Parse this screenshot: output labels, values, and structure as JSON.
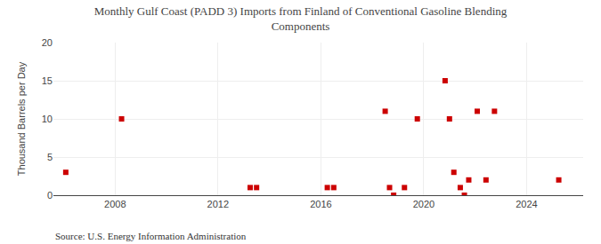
{
  "chart_data": {
    "type": "scatter",
    "title": "Monthly Gulf Coast (PADD 3) Imports from Finland of Conventional Gasoline Blending\nComponents",
    "ylabel": "Thousand Barrels per Day",
    "annotations": [
      "Source: U.S. Energy Information Administration"
    ],
    "x": [
      2006.08,
      2008.25,
      2013.25,
      2013.5,
      2016.25,
      2016.5,
      2018.5,
      2018.67,
      2018.83,
      2019.25,
      2019.75,
      2020.83,
      2021.0,
      2021.17,
      2021.42,
      2021.58,
      2021.75,
      2022.08,
      2022.42,
      2022.75,
      2025.25
    ],
    "values": [
      3,
      10,
      1,
      1,
      1,
      1,
      11,
      1,
      0,
      1,
      10,
      15,
      10,
      3,
      1,
      0,
      2,
      11,
      2,
      11,
      2
    ],
    "color": "#cc0000",
    "marker": "square",
    "xlim": [
      2005.6,
      2026.2
    ],
    "xticks": [
      2008,
      2012,
      2016,
      2020,
      2024
    ],
    "ylim": [
      0,
      20
    ],
    "yticks": [
      0,
      5,
      10,
      15,
      20
    ],
    "grid": true
  }
}
